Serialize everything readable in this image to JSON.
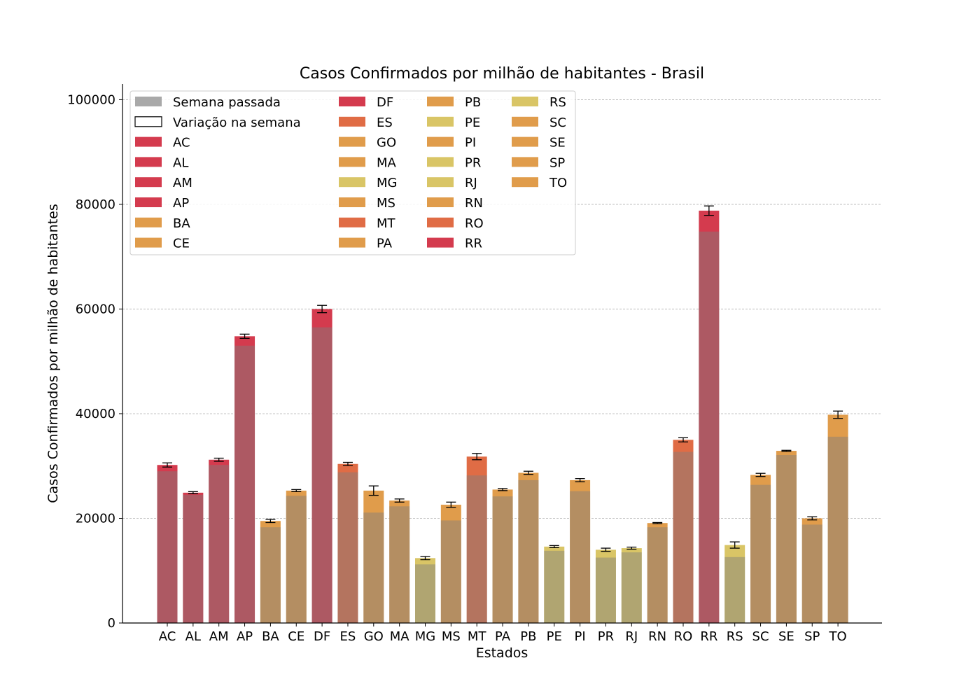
{
  "chart_data": {
    "type": "bar",
    "title": "Casos Confirmados por milhão de habitantes - Brasil",
    "xlabel": "Estados",
    "ylabel": "Casos Confirmados por milhão de habitantes",
    "ylim": [
      0,
      103000
    ],
    "yticks": [
      0,
      20000,
      40000,
      60000,
      80000,
      100000
    ],
    "grid": "horizontal dashed",
    "legend_position": "top-left",
    "legend_fixed": [
      {
        "label": "Semana passada",
        "color": "#a9a9a9",
        "style": "filled"
      },
      {
        "label": "Variação na semana",
        "color": "#000000",
        "style": "outline"
      }
    ],
    "categories": [
      "AC",
      "AL",
      "AM",
      "AP",
      "BA",
      "CE",
      "DF",
      "ES",
      "GO",
      "MA",
      "MG",
      "MS",
      "MT",
      "PA",
      "PB",
      "PE",
      "PI",
      "PR",
      "RJ",
      "RN",
      "RO",
      "RR",
      "RS",
      "SC",
      "SE",
      "SP",
      "TO"
    ],
    "last_week": [
      29000,
      24500,
      30200,
      53000,
      18300,
      24300,
      56500,
      28800,
      21100,
      22300,
      11200,
      19600,
      28200,
      24200,
      27300,
      13800,
      25200,
      12500,
      13500,
      18300,
      32700,
      74800,
      12600,
      26400,
      32100,
      18800,
      35600
    ],
    "current": [
      30200,
      24900,
      31200,
      54800,
      19500,
      25300,
      60000,
      30400,
      25300,
      23400,
      12400,
      22600,
      31800,
      25500,
      28700,
      14600,
      27300,
      14000,
      14300,
      19100,
      35000,
      78800,
      14900,
      28300,
      32900,
      20000,
      39800
    ],
    "error": [
      400,
      200,
      300,
      400,
      300,
      200,
      700,
      300,
      900,
      300,
      300,
      500,
      600,
      200,
      300,
      200,
      300,
      300,
      200,
      100,
      400,
      900,
      600,
      300,
      100,
      300,
      700
    ],
    "colors": {
      "AC": "#d43b4e",
      "AL": "#d43b4e",
      "AM": "#d43b4e",
      "AP": "#d43b4e",
      "BA": "#e09c4b",
      "CE": "#e09c4b",
      "DF": "#d43b4e",
      "ES": "#e06c45",
      "GO": "#e09c4b",
      "MA": "#e09c4b",
      "MG": "#d9c566",
      "MS": "#e09c4b",
      "MT": "#e06c45",
      "PA": "#e09c4b",
      "PB": "#e09c4b",
      "PE": "#d9c566",
      "PI": "#e09c4b",
      "PR": "#d9c566",
      "RJ": "#d9c566",
      "RN": "#e09c4b",
      "RO": "#e06c45",
      "RR": "#d43b4e",
      "RS": "#d9c566",
      "SC": "#e09c4b",
      "SE": "#e09c4b",
      "SP": "#e09c4b",
      "TO": "#e09c4b"
    },
    "shade_color": "#8a6a4a"
  }
}
